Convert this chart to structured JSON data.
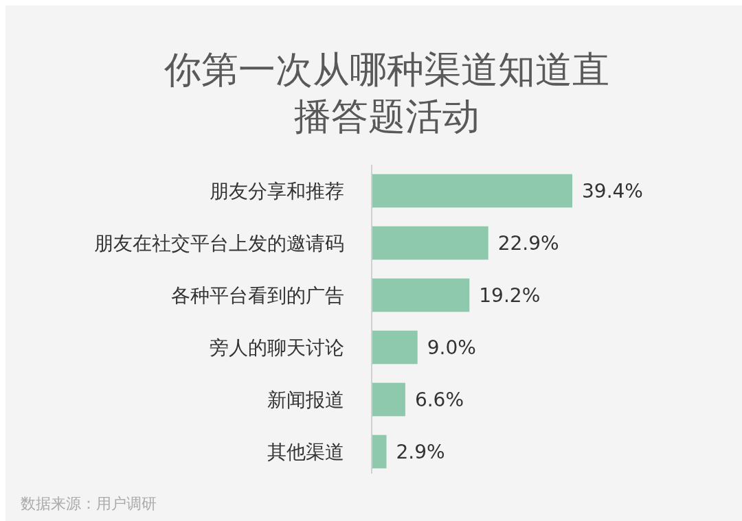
{
  "chart_data": {
    "type": "bar",
    "orientation": "horizontal",
    "title": "你第一次从哪种渠道知道直播答题活动",
    "categories": [
      "朋友分享和推荐",
      "朋友在社交平台上发的邀请码",
      "各种平台看到的广告",
      "旁人的聊天讨论",
      "新闻报道",
      "其他渠道"
    ],
    "values": [
      39.4,
      22.9,
      19.2,
      9.0,
      6.6,
      2.9
    ],
    "value_labels": [
      "39.4%",
      "22.9%",
      "19.2%",
      "9.0%",
      "6.6%",
      "2.9%"
    ],
    "color": "#8fc9ad",
    "annotations": [
      "数据来源：用户调研"
    ]
  }
}
